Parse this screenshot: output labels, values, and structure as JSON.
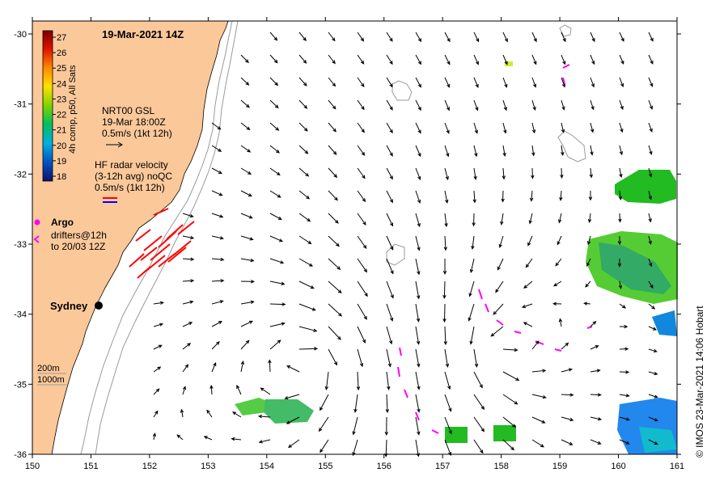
{
  "map": {
    "title": "19-Mar-2021 14Z",
    "x_ticks": [
      "150",
      "151",
      "152",
      "153",
      "154",
      "155",
      "156",
      "157",
      "158",
      "159",
      "160",
      "161"
    ],
    "y_ticks": [
      "-30",
      "-31",
      "-32",
      "-33",
      "-34",
      "-35",
      "-36"
    ],
    "land_color": "#fbc89a",
    "sea_color": "#ffffff"
  },
  "colorbar": {
    "label": "4h comp, p50, All Sats",
    "ticks": [
      "27",
      "26",
      "25",
      "24",
      "23",
      "22",
      "21",
      "20",
      "19",
      "18"
    ]
  },
  "legend": {
    "gsl_title": "NRT00 GSL",
    "gsl_time": "19-Mar 18:00Z",
    "gsl_scale": "0.5m/s (1kt 12h)",
    "hf_title": "HF radar velocity",
    "hf_sub": "(3-12h avg) noQC",
    "hf_scale": "0.5m/s (1kt 12h)",
    "argo_label": "Argo",
    "drifters_line1": "drifters@12h",
    "drifters_line2": "to 20/03 12Z"
  },
  "city": {
    "name": "Sydney"
  },
  "depth_legend": {
    "line1": "200m",
    "line2": "1000m"
  },
  "credit": "© IMOS 23-Mar-2021 14:06 Hobart",
  "colors": {
    "hf_radar": "#ff0000",
    "drifter": "#ff00ff",
    "sst_green": "#22bb22",
    "sst_blue": "#2288ee"
  }
}
